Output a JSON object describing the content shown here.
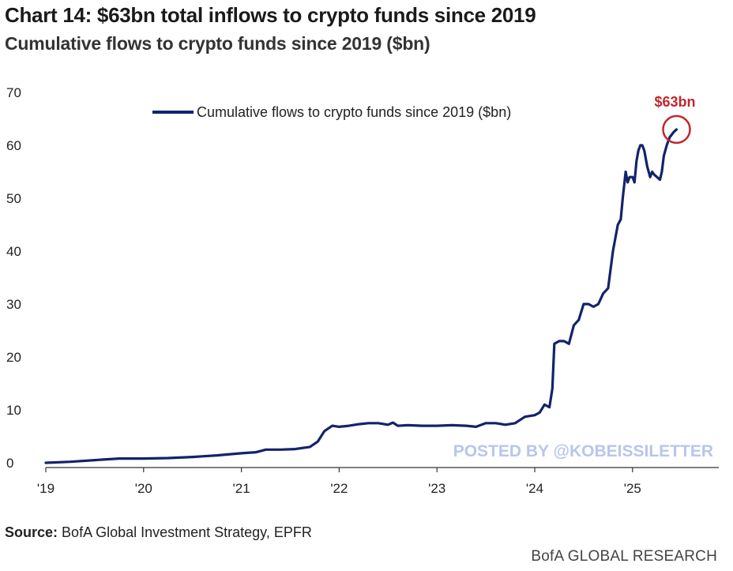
{
  "header": {
    "title": "Chart 14: $63bn total inflows to crypto funds since 2019",
    "subtitle": "Cumulative flows to crypto funds since 2019 ($bn)"
  },
  "footer": {
    "source_label": "Source:",
    "source_text": "BofA Global Investment Strategy, EPFR",
    "brand": "BofA GLOBAL RESEARCH"
  },
  "watermark": "POSTED BY @KOBEISSILETTER",
  "colors": {
    "series": "#13236b",
    "callout": "#c0272d",
    "watermark": "#b8c6ec"
  },
  "chart_data": {
    "type": "line",
    "title": "Chart 14: $63bn total inflows to crypto funds since 2019",
    "subtitle": "Cumulative flows to crypto funds since 2019 ($bn)",
    "xlabel": "",
    "ylabel": "",
    "xlim": [
      2019,
      2026
    ],
    "ylim": [
      0,
      70
    ],
    "xticks": [
      2019,
      2020,
      2021,
      2022,
      2023,
      2024,
      2025
    ],
    "xtick_labels": [
      "'19",
      "'20",
      "'21",
      "'22",
      "'23",
      "'24",
      "'25"
    ],
    "yticks": [
      0,
      10,
      20,
      30,
      40,
      50,
      60,
      70
    ],
    "ytick_labels": [
      "0",
      "10",
      "20",
      "30",
      "40",
      "50",
      "60",
      "70"
    ],
    "grid": false,
    "legend": {
      "position": "top-center",
      "entries": [
        "Cumulative flows to crypto funds since 2019 ($bn)"
      ]
    },
    "annotation": {
      "text": "$63bn",
      "x": 2025.45,
      "y": 63
    },
    "series": [
      {
        "name": "Cumulative flows to crypto funds since 2019 ($bn)",
        "x": [
          2019.0,
          2019.25,
          2019.5,
          2019.75,
          2020.0,
          2020.25,
          2020.5,
          2020.75,
          2021.0,
          2021.15,
          2021.25,
          2021.4,
          2021.55,
          2021.7,
          2021.78,
          2021.85,
          2021.93,
          2022.0,
          2022.1,
          2022.2,
          2022.3,
          2022.4,
          2022.5,
          2022.55,
          2022.6,
          2022.7,
          2022.85,
          2023.0,
          2023.15,
          2023.3,
          2023.4,
          2023.5,
          2023.6,
          2023.7,
          2023.8,
          2023.9,
          2024.0,
          2024.05,
          2024.1,
          2024.15,
          2024.18,
          2024.2,
          2024.25,
          2024.3,
          2024.35,
          2024.4,
          2024.45,
          2024.5,
          2024.55,
          2024.6,
          2024.65,
          2024.7,
          2024.75,
          2024.8,
          2024.85,
          2024.88,
          2024.9,
          2024.93,
          2024.95,
          2024.97,
          2025.0,
          2025.02,
          2025.04,
          2025.06,
          2025.08,
          2025.1,
          2025.12,
          2025.15,
          2025.18,
          2025.2,
          2025.22,
          2025.25,
          2025.28,
          2025.3,
          2025.32,
          2025.35,
          2025.38,
          2025.4,
          2025.42,
          2025.45
        ],
        "values": [
          0,
          0.2,
          0.5,
          0.8,
          0.8,
          0.9,
          1.1,
          1.4,
          1.8,
          2.0,
          2.5,
          2.5,
          2.6,
          3.0,
          4.0,
          6.0,
          7.0,
          6.8,
          7.0,
          7.3,
          7.5,
          7.5,
          7.2,
          7.6,
          7.0,
          7.1,
          7.0,
          7.0,
          7.1,
          7.0,
          6.8,
          7.5,
          7.5,
          7.2,
          7.5,
          8.7,
          9.0,
          9.5,
          11.0,
          10.5,
          14.0,
          22.5,
          23.0,
          23.0,
          22.5,
          26.0,
          27.0,
          30.0,
          30.0,
          29.5,
          30.0,
          32.0,
          33.0,
          40.0,
          45.0,
          46.0,
          50.0,
          55.0,
          53.0,
          54.0,
          54.0,
          53.0,
          57.0,
          59.0,
          60.0,
          60.0,
          59.0,
          56.0,
          54.0,
          55.0,
          54.5,
          54.0,
          53.5,
          55.0,
          58.0,
          60.0,
          61.5,
          62.0,
          62.5,
          63.0
        ]
      }
    ]
  }
}
